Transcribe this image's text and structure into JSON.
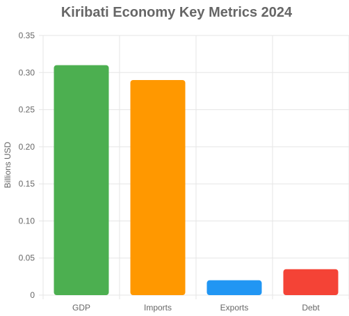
{
  "chart_data": {
    "type": "bar",
    "title": "Kiribati Economy Key Metrics 2024",
    "xlabel": "",
    "ylabel": "Billions USD",
    "categories": [
      "GDP",
      "Imports",
      "Exports",
      "Debt"
    ],
    "values": [
      0.31,
      0.29,
      0.02,
      0.035
    ],
    "colors": [
      "#4caf50",
      "#ff9800",
      "#2196f3",
      "#f44336"
    ],
    "ylim": [
      0,
      0.35
    ],
    "yticks": [
      "0",
      "0.05",
      "0.10",
      "0.15",
      "0.20",
      "0.25",
      "0.30",
      "0.35"
    ],
    "grid": true,
    "legend": "none"
  }
}
